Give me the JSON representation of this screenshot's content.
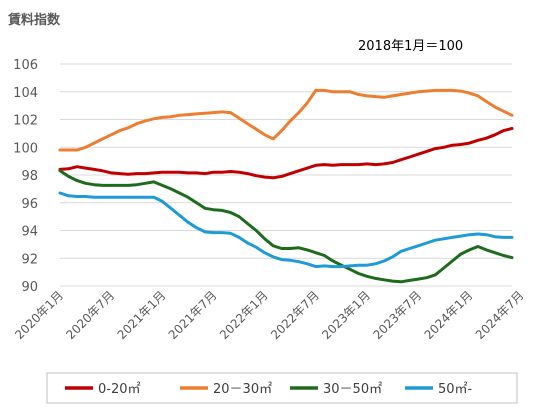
{
  "chart_data": {
    "type": "line",
    "title": "賃料指数",
    "annotation": "2018年1月＝100",
    "ylim": [
      90,
      106
    ],
    "yticks": [
      90,
      92,
      94,
      96,
      98,
      100,
      102,
      104,
      106
    ],
    "x_start": "2020-01",
    "x_end": "2024-11",
    "x_tick_labels": [
      "2020年1月",
      "2020年7月",
      "2021年1月",
      "2021年7月",
      "2022年1月",
      "2022年7月",
      "2023年1月",
      "2023年7月",
      "2024年1月",
      "2024年7月"
    ],
    "grid": true,
    "legend_position": "bottom",
    "series": [
      {
        "name": "0-20㎡",
        "color": "#c00000",
        "values": [
          98.4,
          98.45,
          98.6,
          98.5,
          98.4,
          98.3,
          98.15,
          98.1,
          98.05,
          98.1,
          98.1,
          98.15,
          98.2,
          98.2,
          98.2,
          98.15,
          98.15,
          98.1,
          98.2,
          98.2,
          98.25,
          98.2,
          98.1,
          97.95,
          97.85,
          97.8,
          97.9,
          98.1,
          98.3,
          98.5,
          98.7,
          98.75,
          98.7,
          98.75,
          98.75,
          98.75,
          98.8,
          98.75,
          98.8,
          98.9,
          99.1,
          99.3,
          99.5,
          99.7,
          99.9,
          100.0,
          100.15,
          100.2,
          100.3,
          100.5,
          100.65,
          100.9,
          101.2,
          101.35
        ]
      },
      {
        "name": "20－30㎡",
        "color": "#ed7d31",
        "values": [
          99.8,
          99.8,
          99.8,
          100.0,
          100.3,
          100.6,
          100.9,
          101.2,
          101.4,
          101.7,
          101.9,
          102.05,
          102.15,
          102.2,
          102.3,
          102.35,
          102.4,
          102.45,
          102.5,
          102.55,
          102.5,
          102.1,
          101.7,
          101.3,
          100.9,
          100.6,
          101.2,
          101.9,
          102.5,
          103.2,
          104.1,
          104.1,
          104.0,
          104.0,
          104.0,
          103.8,
          103.7,
          103.65,
          103.6,
          103.7,
          103.8,
          103.9,
          104.0,
          104.05,
          104.1,
          104.1,
          104.1,
          104.05,
          103.9,
          103.7,
          103.3,
          102.9,
          102.6,
          102.3
        ]
      },
      {
        "name": "30－50㎡",
        "color": "#1e6b1e",
        "values": [
          98.3,
          97.9,
          97.6,
          97.4,
          97.3,
          97.25,
          97.25,
          97.25,
          97.25,
          97.3,
          97.4,
          97.5,
          97.25,
          97.0,
          96.7,
          96.4,
          96.0,
          95.6,
          95.5,
          95.45,
          95.3,
          95.0,
          94.5,
          94.0,
          93.4,
          92.9,
          92.7,
          92.7,
          92.75,
          92.6,
          92.4,
          92.2,
          91.8,
          91.5,
          91.2,
          90.9,
          90.7,
          90.55,
          90.45,
          90.35,
          90.3,
          90.4,
          90.5,
          90.6,
          90.8,
          91.3,
          91.8,
          92.3,
          92.6,
          92.85,
          92.6,
          92.4,
          92.2,
          92.05
        ]
      },
      {
        "name": "50㎡-",
        "color": "#1e9bd7",
        "values": [
          96.7,
          96.5,
          96.45,
          96.45,
          96.4,
          96.4,
          96.4,
          96.4,
          96.4,
          96.4,
          96.4,
          96.4,
          96.1,
          95.6,
          95.1,
          94.6,
          94.2,
          93.9,
          93.85,
          93.85,
          93.8,
          93.5,
          93.1,
          92.8,
          92.4,
          92.1,
          91.9,
          91.85,
          91.75,
          91.6,
          91.4,
          91.45,
          91.4,
          91.4,
          91.45,
          91.5,
          91.5,
          91.6,
          91.8,
          92.1,
          92.5,
          92.7,
          92.9,
          93.1,
          93.3,
          93.4,
          93.5,
          93.6,
          93.7,
          93.75,
          93.7,
          93.55,
          93.5,
          93.5
        ]
      }
    ]
  }
}
